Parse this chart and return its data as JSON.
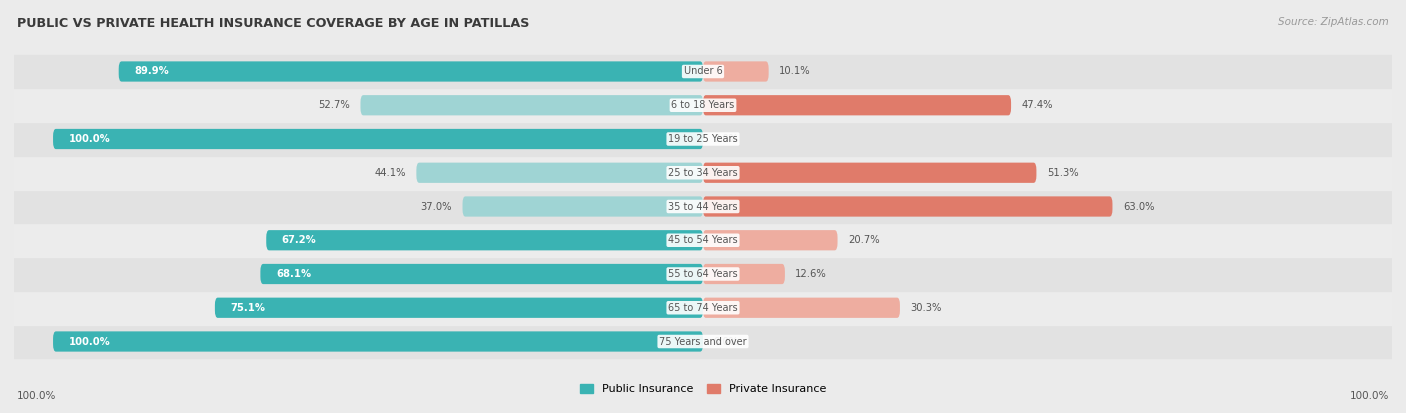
{
  "title": "PUBLIC VS PRIVATE HEALTH INSURANCE COVERAGE BY AGE IN PATILLAS",
  "source": "Source: ZipAtlas.com",
  "categories": [
    "Under 6",
    "6 to 18 Years",
    "19 to 25 Years",
    "25 to 34 Years",
    "35 to 44 Years",
    "45 to 54 Years",
    "55 to 64 Years",
    "65 to 74 Years",
    "75 Years and over"
  ],
  "public_values": [
    89.9,
    52.7,
    100.0,
    44.1,
    37.0,
    67.2,
    68.1,
    75.1,
    100.0
  ],
  "private_values": [
    10.1,
    47.4,
    0.0,
    51.3,
    63.0,
    20.7,
    12.6,
    30.3,
    0.0
  ],
  "public_color_strong": "#3ab3b3",
  "public_color_light": "#9fd4d4",
  "private_color_strong": "#e07b6a",
  "private_color_light": "#eeada0",
  "bg_color": "#ebebeb",
  "row_colors": [
    "#e2e2e2",
    "#ececec"
  ],
  "title_color": "#3a3a3a",
  "label_dark": "#555555",
  "label_white": "#ffffff",
  "source_color": "#999999",
  "center_label_color": "#555555",
  "figsize": [
    14.06,
    4.13
  ],
  "dpi": 100
}
